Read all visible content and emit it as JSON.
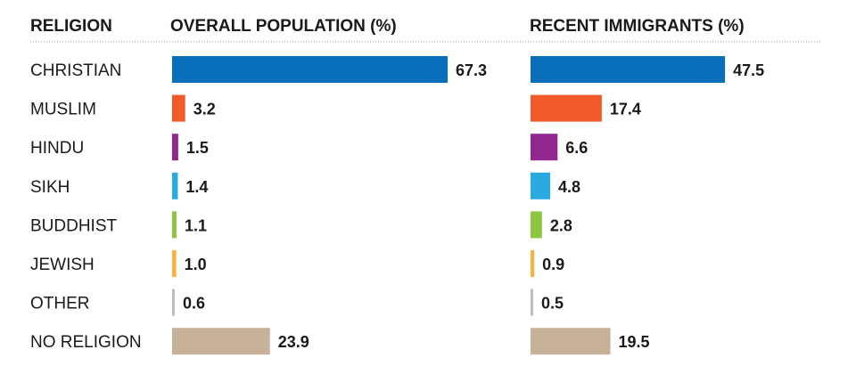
{
  "chart_data": [
    {
      "type": "bar",
      "orientation": "horizontal",
      "title": "OVERALL POPULATION (%)",
      "category_header": "RELIGION",
      "categories": [
        "CHRISTIAN",
        "MUSLIM",
        "HINDU",
        "SIKH",
        "BUDDHIST",
        "JEWISH",
        "OTHER",
        "NO RELIGION"
      ],
      "values": [
        67.3,
        3.2,
        1.5,
        1.4,
        1.1,
        1.0,
        0.6,
        23.9
      ],
      "value_labels": [
        "67.3",
        "3.2",
        "1.5",
        "1.4",
        "1.1",
        "1.0",
        "0.6",
        "23.9"
      ],
      "colors": [
        "#0a6fbb",
        "#f15a29",
        "#92278f",
        "#29abe2",
        "#8dc63f",
        "#fbb040",
        "#bcbec0",
        "#c7b299"
      ],
      "grid": false,
      "legend": "none"
    },
    {
      "type": "bar",
      "orientation": "horizontal",
      "title": "RECENT IMMIGRANTS (%)",
      "categories": [
        "CHRISTIAN",
        "MUSLIM",
        "HINDU",
        "SIKH",
        "BUDDHIST",
        "JEWISH",
        "OTHER",
        "NO RELIGION"
      ],
      "values": [
        47.5,
        17.4,
        6.6,
        4.8,
        2.8,
        0.9,
        0.5,
        19.5
      ],
      "value_labels": [
        "47.5",
        "17.4",
        "6.6",
        "4.8",
        "2.8",
        "0.9",
        "0.5",
        "19.5"
      ],
      "colors": [
        "#0a6fbb",
        "#f15a29",
        "#92278f",
        "#29abe2",
        "#8dc63f",
        "#fbb040",
        "#bcbec0",
        "#c7b299"
      ],
      "grid": false,
      "legend": "none"
    }
  ],
  "colors": {
    "text": "#1a1a1a",
    "divider": "#9a9a9a"
  }
}
